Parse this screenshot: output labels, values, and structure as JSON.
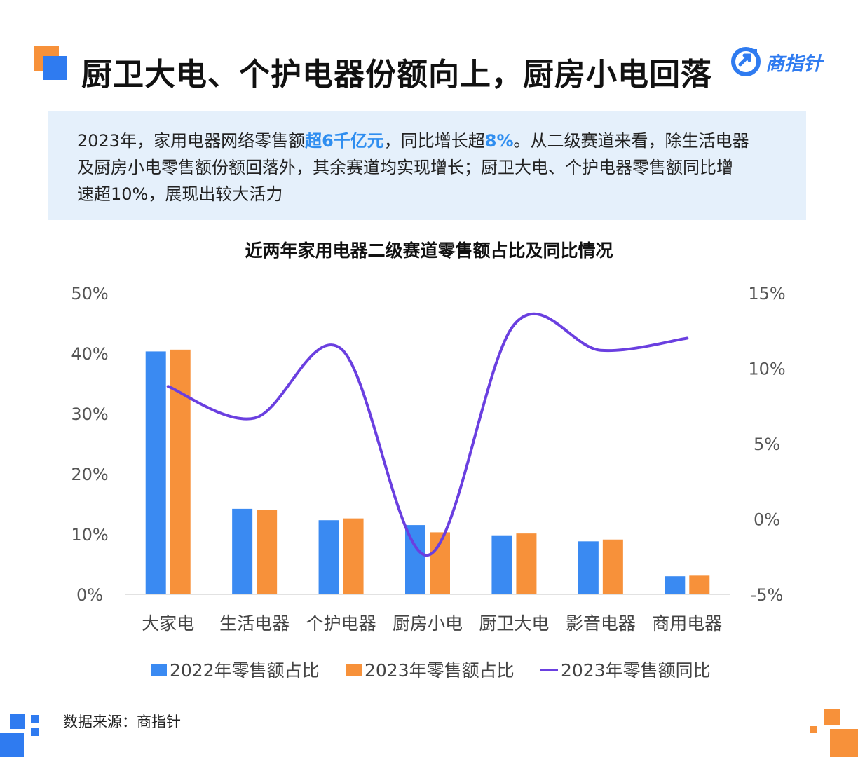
{
  "header": {
    "title": "厨卫大电、个护电器份额向上，厨房小电回落",
    "logo_text": "商指针"
  },
  "summary": {
    "line1_a": "2023年，家用电器网络零售额",
    "line1_hl1": "超6千亿元",
    "line1_b": "，同比增长超",
    "line1_hl2": "8%",
    "line1_c": "。从二级赛道来看，除生活电器",
    "line2": "及厨房小电零售额份额回落外，其余赛道均实现增长；厨卫大电、个护电器零售额同比增",
    "line3": "速超10%，展现出较大活力"
  },
  "footer": {
    "source": "数据来源：商指针"
  },
  "colors": {
    "bar2022": "#3a8af2",
    "bar2023": "#f7913a",
    "line": "#6a3fe0",
    "accent_orange": "#f7913a",
    "accent_blue": "#2f7bf0"
  },
  "chart_data": {
    "type": "bar",
    "title": "近两年家用电器二级赛道零售额占比及同比情况",
    "categories": [
      "大家电",
      "生活电器",
      "个护电器",
      "厨房小电",
      "厨卫大电",
      "影音电器",
      "商用电器"
    ],
    "series": [
      {
        "name": "2022年零售额占比",
        "type": "bar",
        "axis": "left",
        "values": [
          40.3,
          14.2,
          12.3,
          11.5,
          9.8,
          8.8,
          3.0
        ]
      },
      {
        "name": "2023年零售额占比",
        "type": "bar",
        "axis": "left",
        "values": [
          40.6,
          14.0,
          12.6,
          10.3,
          10.1,
          9.1,
          3.1
        ]
      },
      {
        "name": "2023年零售额同比",
        "type": "line",
        "axis": "right",
        "smooth": true,
        "values": [
          8.8,
          6.7,
          11.3,
          -2.4,
          12.9,
          11.2,
          12.0
        ]
      }
    ],
    "ylim_left": [
      0,
      50
    ],
    "yticks_left": [
      "0%",
      "10%",
      "20%",
      "30%",
      "40%",
      "50%"
    ],
    "ylim_right": [
      -5,
      15
    ],
    "yticks_right": [
      "-5%",
      "0%",
      "5%",
      "10%",
      "15%"
    ],
    "legend": "bottom"
  }
}
